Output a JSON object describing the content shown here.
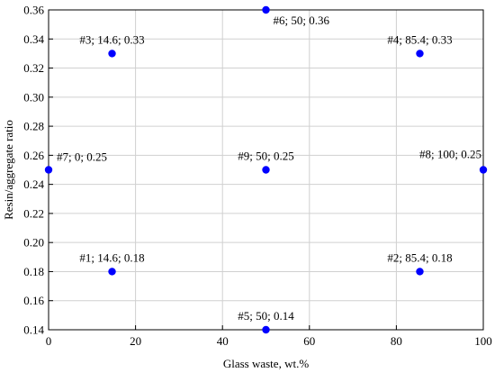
{
  "chart_data": {
    "type": "scatter",
    "title": "",
    "xlabel": "Glass waste, wt.%",
    "ylabel": "Resin/aggregate ratio",
    "xlim": [
      0,
      100
    ],
    "ylim": [
      0.14,
      0.36
    ],
    "x_ticks": [
      "0",
      "20",
      "40",
      "60",
      "80",
      "100"
    ],
    "y_ticks": [
      "0.14",
      "0.16",
      "0.18",
      "0.20",
      "0.22",
      "0.24",
      "0.26",
      "0.28",
      "0.30",
      "0.32",
      "0.34",
      "0.36"
    ],
    "grid": true,
    "marker_color": "#0000ff",
    "points": [
      {
        "x": 14.6,
        "y": 0.18,
        "label": "#1; 14.6; 0.18",
        "label_pos": "above"
      },
      {
        "x": 85.4,
        "y": 0.18,
        "label": "#2; 85.4; 0.18",
        "label_pos": "above"
      },
      {
        "x": 14.6,
        "y": 0.33,
        "label": "#3; 14.6; 0.33",
        "label_pos": "above"
      },
      {
        "x": 85.4,
        "y": 0.33,
        "label": "#4; 85.4; 0.33",
        "label_pos": "above"
      },
      {
        "x": 50,
        "y": 0.14,
        "label": "#5; 50; 0.14",
        "label_pos": "above"
      },
      {
        "x": 50,
        "y": 0.36,
        "label": "#6; 50; 0.36",
        "label_pos": "below"
      },
      {
        "x": 0,
        "y": 0.25,
        "label": "#7; 0; 0.25",
        "label_pos": "above-right"
      },
      {
        "x": 100,
        "y": 0.25,
        "label": "#8; 100; 0.25",
        "label_pos": "above-left"
      },
      {
        "x": 50,
        "y": 0.25,
        "label": "#9; 50; 0.25",
        "label_pos": "above"
      }
    ]
  }
}
